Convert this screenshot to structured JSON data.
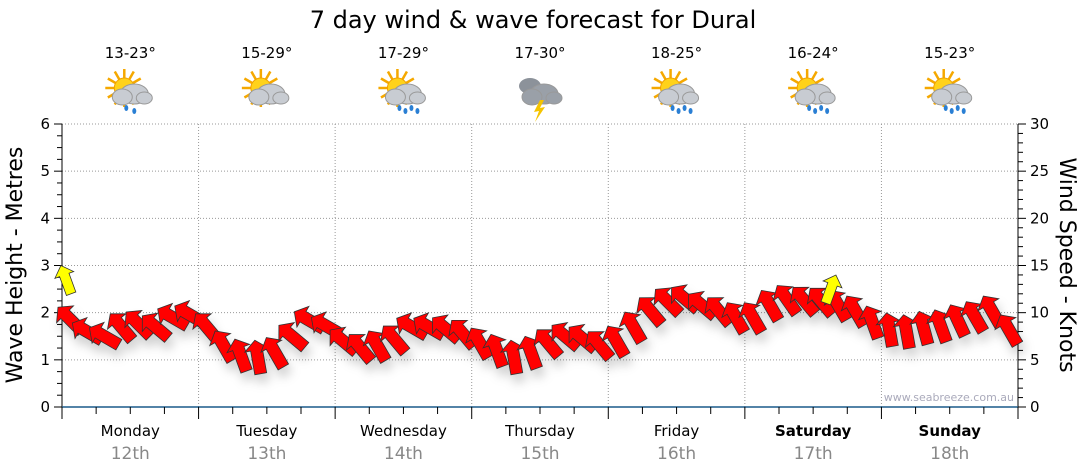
{
  "chart_data": {
    "type": "line",
    "title": "7 day wind & wave forecast for Dural",
    "ylabel": "Wave Height - Metres",
    "ylabel_right": "Wind Speed - Knots",
    "ylim": [
      0,
      6
    ],
    "ylim_right": [
      0,
      30
    ],
    "yticks": [
      "0",
      "1",
      "2",
      "3",
      "4",
      "5",
      "6"
    ],
    "yticks_right": [
      "0",
      "5",
      "10",
      "15",
      "20",
      "25",
      "30"
    ],
    "grid": true,
    "watermark": "www.seabreeze.com.au",
    "days": [
      {
        "name": "Monday",
        "date": "12th",
        "temp": "13-23°",
        "icon": "sun-cloud-shower-icon",
        "bold": false
      },
      {
        "name": "Tuesday",
        "date": "13th",
        "temp": "15-29°",
        "icon": "sun-cloud-icon",
        "bold": false
      },
      {
        "name": "Wednesday",
        "date": "14th",
        "temp": "17-29°",
        "icon": "sun-cloud-rain-icon",
        "bold": false
      },
      {
        "name": "Thursday",
        "date": "15th",
        "temp": "17-30°",
        "icon": "thunderstorm-icon",
        "bold": false
      },
      {
        "name": "Friday",
        "date": "16th",
        "temp": "18-25°",
        "icon": "sun-cloud-rain-icon",
        "bold": false
      },
      {
        "name": "Saturday",
        "date": "17th",
        "temp": "16-24°",
        "icon": "sun-cloud-rain-icon",
        "bold": true
      },
      {
        "name": "Sunday",
        "date": "18th",
        "temp": "15-23°",
        "icon": "sun-cloud-rain-icon",
        "bold": true
      }
    ],
    "series": [
      {
        "name": "Wind speed (knots)",
        "color": "#ff0000",
        "interval_hours": 3,
        "values": [
          9.3,
          8,
          7.5,
          8.5,
          8.8,
          8.5,
          9.5,
          9.8,
          8.5,
          6.5,
          5.5,
          5.3,
          5.8,
          7.5,
          9.2,
          8.6,
          7,
          6.3,
          6.5,
          7.2,
          8.5,
          8.5,
          8.3,
          7.8,
          6.8,
          6,
          5.3,
          5.8,
          6.8,
          7.5,
          7.3,
          6.6,
          7,
          8.5,
          10.2,
          11.2,
          11.5,
          10.8,
          10.2,
          9.5,
          9.5,
          10.8,
          11.4,
          11.3,
          11.2,
          10.8,
          10.2,
          9,
          8.2,
          8,
          8.4,
          8.6,
          9.2,
          9.6,
          10.2,
          8.2
        ],
        "directions_deg": [
          315,
          300,
          300,
          320,
          315,
          310,
          300,
          300,
          320,
          330,
          340,
          350,
          330,
          310,
          300,
          300,
          310,
          320,
          330,
          320,
          300,
          300,
          310,
          320,
          330,
          340,
          350,
          340,
          320,
          310,
          310,
          320,
          330,
          330,
          320,
          315,
          310,
          310,
          320,
          330,
          330,
          330,
          325,
          320,
          320,
          330,
          330,
          340,
          350,
          350,
          345,
          340,
          335,
          330,
          330,
          330
        ]
      },
      {
        "name": "Wave height (m)",
        "color": "#ffff00",
        "points": [
          {
            "day_index": 0.0,
            "value": 2.7,
            "direction_deg": 340
          },
          {
            "day_index": 5.6,
            "value": 2.5,
            "direction_deg": 20
          }
        ]
      }
    ]
  }
}
